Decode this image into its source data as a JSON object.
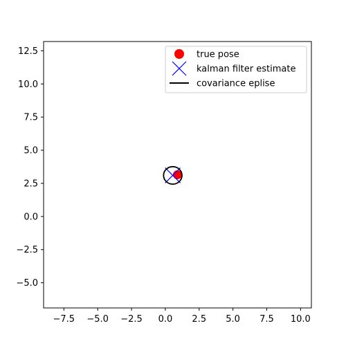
{
  "chart_data": {
    "type": "scatter",
    "title": "",
    "xlabel": "",
    "ylabel": "",
    "xlim": [
      -9.0,
      10.8
    ],
    "ylim": [
      -6.9,
      13.2
    ],
    "xticks": [
      -7.5,
      -5.0,
      -2.5,
      0.0,
      2.5,
      5.0,
      7.5,
      10.0
    ],
    "xtick_labels": [
      "−7.5",
      "−5.0",
      "−2.5",
      "0.0",
      "2.5",
      "5.0",
      "7.5",
      "10.0"
    ],
    "yticks": [
      -5.0,
      -2.5,
      0.0,
      2.5,
      5.0,
      7.5,
      10.0,
      12.5
    ],
    "ytick_labels": [
      "−5.0",
      "−2.5",
      "0.0",
      "2.5",
      "5.0",
      "7.5",
      "10.0",
      "12.5"
    ],
    "grid": false,
    "legend_position": "top-right",
    "series": [
      {
        "name": "true pose",
        "marker": "circle",
        "color": "#ff0000",
        "points": [
          {
            "x": 0.9,
            "y": 3.15
          }
        ]
      },
      {
        "name": "kalman filter estimate",
        "marker": "x",
        "color": "#0000ff",
        "points": [
          {
            "x": 0.55,
            "y": 3.1
          }
        ]
      },
      {
        "name": "covariance eplise",
        "marker": "line",
        "color": "#000000",
        "ellipse": {
          "cx": 0.55,
          "cy": 3.1,
          "rx": 0.68,
          "ry": 0.66
        }
      }
    ]
  }
}
